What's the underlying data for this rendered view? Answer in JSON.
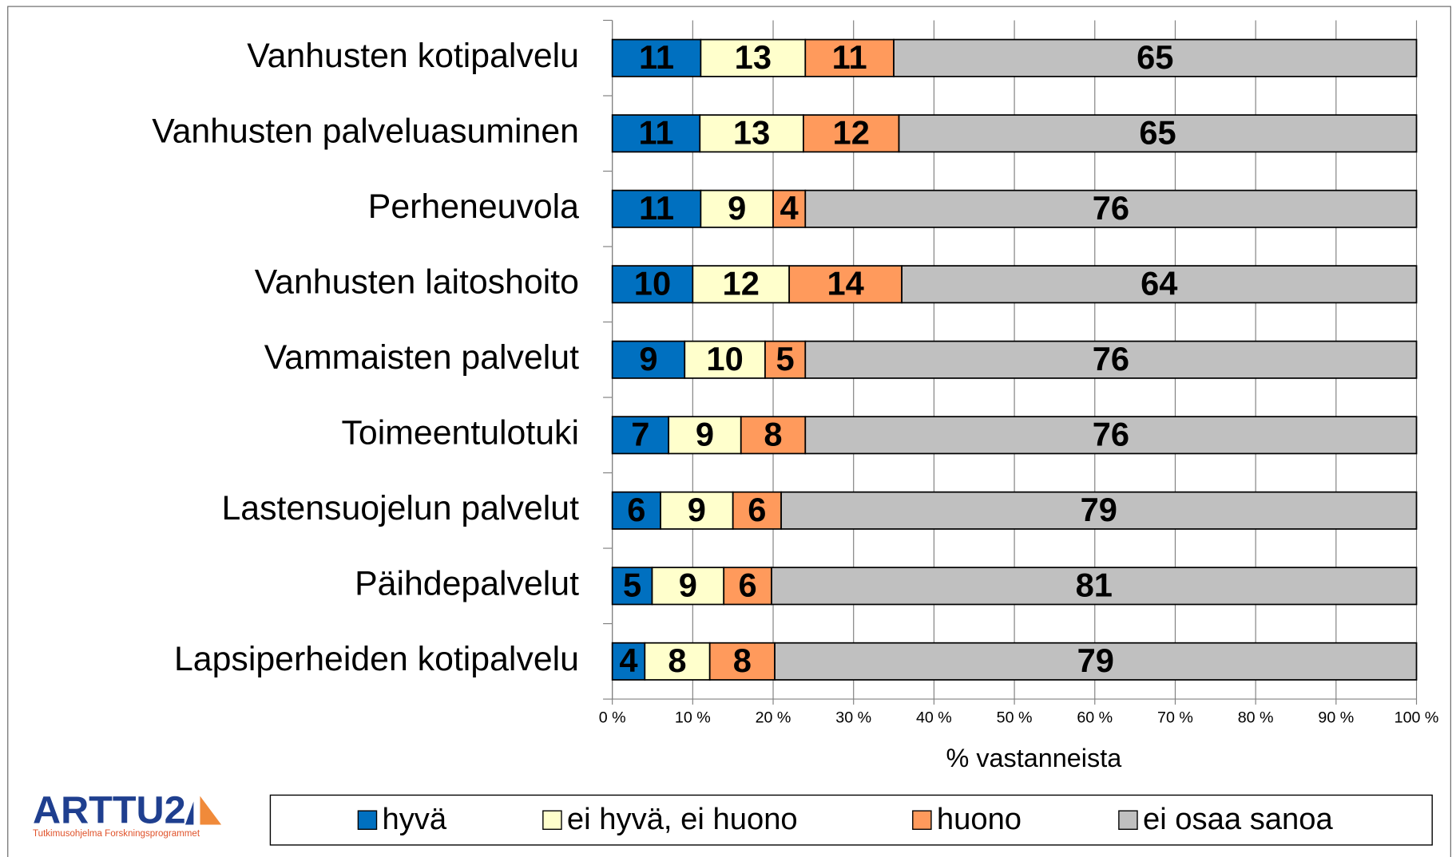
{
  "chart_data": {
    "type": "bar",
    "orientation": "horizontal",
    "stacked": "percent",
    "categories": [
      "Vanhusten kotipalvelu",
      "Vanhusten palveluasuminen",
      "Perheneuvola",
      "Vanhusten laitoshoito",
      "Vammaisten palvelut",
      "Toimeentulotuki",
      "Lastensuojelun palvelut",
      "Päihdepalvelut",
      "Lapsiperheiden kotipalvelu"
    ],
    "series": [
      {
        "name": "hyvä",
        "color": "#0070c0",
        "values": [
          11,
          11,
          11,
          10,
          9,
          7,
          6,
          5,
          4
        ]
      },
      {
        "name": "ei hyvä, ei huono",
        "color": "#ffffcc",
        "values": [
          13,
          13,
          9,
          12,
          10,
          9,
          9,
          9,
          8
        ]
      },
      {
        "name": "huono",
        "color": "#ff9a5c",
        "values": [
          11,
          12,
          4,
          14,
          5,
          8,
          6,
          6,
          8
        ]
      },
      {
        "name": "ei osaa sanoa",
        "color": "#c0c0c0",
        "values": [
          65,
          65,
          76,
          64,
          76,
          76,
          79,
          81,
          79
        ]
      }
    ],
    "xlim": [
      0,
      100
    ],
    "xticks": [
      {
        "value": 0,
        "label": "0 %"
      },
      {
        "value": 10,
        "label": "10 %"
      },
      {
        "value": 20,
        "label": "20 %"
      },
      {
        "value": 30,
        "label": "30 %"
      },
      {
        "value": 40,
        "label": "40 %"
      },
      {
        "value": 50,
        "label": "50 %"
      },
      {
        "value": 60,
        "label": "60 %"
      },
      {
        "value": 70,
        "label": "70 %"
      },
      {
        "value": 80,
        "label": "80 %"
      },
      {
        "value": 90,
        "label": "90 %"
      },
      {
        "value": 100,
        "label": "100 %"
      }
    ],
    "x_label": "% vastanneista",
    "grid": true,
    "legend": "bottom"
  },
  "logo": {
    "name": "ARTTU2",
    "subtitle": "Tutkimusohjelma  Forskningsprogrammet"
  }
}
